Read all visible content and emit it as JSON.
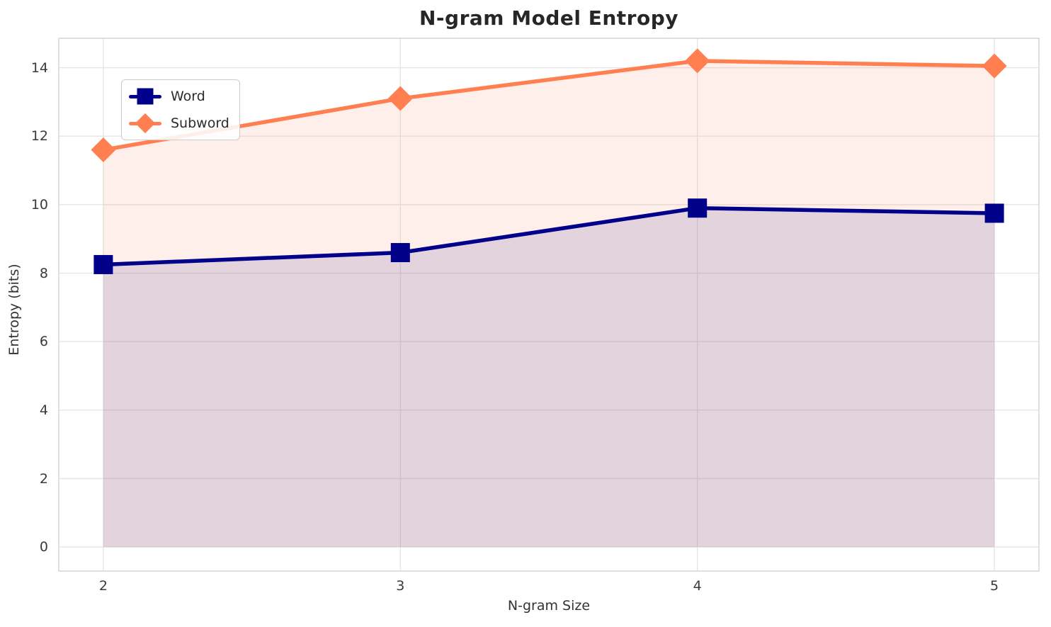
{
  "chart_data": {
    "type": "line",
    "title": "N-gram Model Entropy",
    "xlabel": "N-gram Size",
    "ylabel": "Entropy (bits)",
    "x": [
      2,
      3,
      4,
      5
    ],
    "series": [
      {
        "name": "Word",
        "marker": "square",
        "color": "#00008b",
        "values": [
          8.25,
          8.6,
          9.9,
          9.75
        ]
      },
      {
        "name": "Subword",
        "marker": "diamond",
        "color": "#ff7f50",
        "values": [
          11.6,
          13.1,
          14.2,
          14.05
        ]
      }
    ],
    "fill_to_zero": true,
    "fill_alpha": 0.12,
    "xticks": [
      2,
      3,
      4,
      5
    ],
    "yticks": [
      0,
      2,
      4,
      6,
      8,
      10,
      12,
      14
    ],
    "xlim": [
      1.85,
      5.15
    ],
    "ylim": [
      -0.7,
      14.86
    ],
    "grid": true,
    "legend_position": "upper-left"
  },
  "colors": {
    "grid": "#e6e6e6",
    "spine": "#d8d8d8",
    "title_text": "#262626",
    "axis_text": "#333333"
  }
}
